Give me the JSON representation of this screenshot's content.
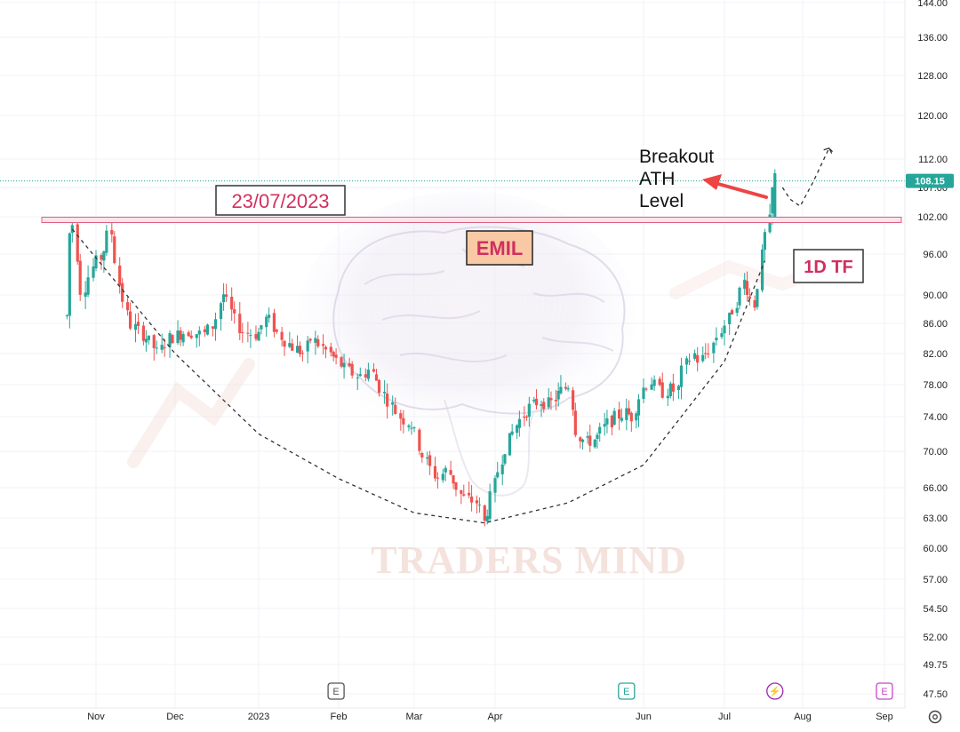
{
  "chart_data": {
    "type": "candlestick",
    "timeframe_label": "1D TF",
    "symbol_label": "EMIL",
    "date_label": "23/07/2023",
    "annotation": {
      "line1": "Breakout",
      "line2": "ATH",
      "line3": "Level"
    },
    "watermark": "TRADERS MIND",
    "last_price": "108.15",
    "last_price_value": 108.15,
    "resistance_level": 101.5,
    "y_ticks": [
      "144.00",
      "136.00",
      "128.00",
      "120.00",
      "112.00",
      "107.00",
      "102.00",
      "96.00",
      "90.00",
      "86.00",
      "82.00",
      "78.00",
      "74.00",
      "70.00",
      "66.00",
      "63.00",
      "60.00",
      "57.00",
      "54.50",
      "52.00",
      "49.75",
      "47.50"
    ],
    "y_tick_values": [
      144,
      136,
      128,
      120,
      112,
      107,
      102,
      96,
      90,
      86,
      82,
      78,
      74,
      70,
      66,
      63,
      60,
      57,
      54.5,
      52,
      49.75,
      47.5
    ],
    "x_ticks": [
      "Nov",
      "Dec",
      "2023",
      "Feb",
      "Mar",
      "Apr",
      "Jun",
      "Jul",
      "Aug",
      "Sep"
    ],
    "x_tick_dates": [
      "2022-11-01",
      "2022-12-01",
      "2023-01-01",
      "2023-02-01",
      "2023-03-01",
      "2023-04-01",
      "2023-06-01",
      "2023-07-01",
      "2023-08-01",
      "2023-09-01"
    ],
    "y_scale": "log",
    "grid": true,
    "event_markers": [
      {
        "label": "E",
        "date": "2023-01-31"
      },
      {
        "label": "E",
        "date": "2023-05-25"
      },
      {
        "label": "⚡",
        "date": "2023-07-21"
      },
      {
        "label": "E",
        "date": "2023-09-01"
      }
    ],
    "cup_path": [
      [
        "2022-10-23",
        100
      ],
      [
        "2022-12-01",
        82
      ],
      [
        "2023-01-01",
        72
      ],
      [
        "2023-02-01",
        67
      ],
      [
        "2023-03-01",
        63.5
      ],
      [
        "2023-03-28",
        62.5
      ],
      [
        "2023-05-01",
        64.5
      ],
      [
        "2023-06-01",
        68.5
      ],
      [
        "2023-07-01",
        81
      ],
      [
        "2023-07-17",
        95
      ]
    ],
    "projection_path": [
      [
        "2023-07-24",
        107
      ],
      [
        "2023-07-27",
        105
      ],
      [
        "2023-07-31",
        103.8
      ],
      [
        "2023-08-05",
        108
      ],
      [
        "2023-08-11",
        114
      ],
      [
        "2023-08-13",
        113
      ]
    ],
    "price_path": [
      [
        "2022-10-21",
        87
      ],
      [
        "2022-10-23",
        104
      ],
      [
        "2022-10-27",
        90
      ],
      [
        "2022-10-31",
        94
      ],
      [
        "2022-11-04",
        96
      ],
      [
        "2022-11-07",
        100.5
      ],
      [
        "2022-11-10",
        92
      ],
      [
        "2022-11-14",
        86
      ],
      [
        "2022-11-21",
        84
      ],
      [
        "2022-11-25",
        82
      ],
      [
        "2022-11-29",
        84
      ],
      [
        "2022-12-06",
        85
      ],
      [
        "2022-12-12",
        84.5
      ],
      [
        "2022-12-16",
        86
      ],
      [
        "2022-12-19",
        90.5
      ],
      [
        "2022-12-23",
        87
      ],
      [
        "2022-12-26",
        85
      ],
      [
        "2023-01-01",
        84.5
      ],
      [
        "2023-01-05",
        87
      ],
      [
        "2023-01-08",
        85
      ],
      [
        "2023-01-14",
        83
      ],
      [
        "2023-01-19",
        82
      ],
      [
        "2023-01-22",
        84
      ],
      [
        "2023-01-29",
        82
      ],
      [
        "2023-02-04",
        80
      ],
      [
        "2023-02-09",
        79
      ],
      [
        "2023-02-13",
        80
      ],
      [
        "2023-02-18",
        77
      ],
      [
        "2023-02-24",
        74
      ],
      [
        "2023-03-01",
        73
      ],
      [
        "2023-03-04",
        70
      ],
      [
        "2023-03-08",
        68
      ],
      [
        "2023-03-10",
        67
      ],
      [
        "2023-03-14",
        68
      ],
      [
        "2023-03-20",
        65
      ],
      [
        "2023-03-26",
        64.5
      ],
      [
        "2023-03-28",
        62.5
      ],
      [
        "2023-03-31",
        65
      ],
      [
        "2023-04-05",
        70
      ],
      [
        "2023-04-10",
        73
      ],
      [
        "2023-04-15",
        75
      ],
      [
        "2023-04-20",
        76
      ],
      [
        "2023-04-24",
        75.5
      ],
      [
        "2023-04-28",
        77
      ],
      [
        "2023-05-02",
        78
      ],
      [
        "2023-05-05",
        72
      ],
      [
        "2023-05-09",
        71
      ],
      [
        "2023-05-13",
        71.5
      ],
      [
        "2023-05-17",
        73
      ],
      [
        "2023-05-21",
        74
      ],
      [
        "2023-05-25",
        74.5
      ],
      [
        "2023-05-28",
        74
      ],
      [
        "2023-06-01",
        77.5
      ],
      [
        "2023-06-04",
        78.5
      ],
      [
        "2023-06-08",
        77
      ],
      [
        "2023-06-12",
        77.5
      ],
      [
        "2023-06-14",
        77
      ],
      [
        "2023-06-16",
        80
      ],
      [
        "2023-06-20",
        82
      ],
      [
        "2023-06-22",
        81
      ],
      [
        "2023-06-26",
        82.5
      ],
      [
        "2023-06-30",
        85
      ],
      [
        "2023-07-03",
        86.5
      ],
      [
        "2023-07-06",
        89
      ],
      [
        "2023-07-09",
        92
      ],
      [
        "2023-07-11",
        90.5
      ],
      [
        "2023-07-13",
        88
      ],
      [
        "2023-07-15",
        92
      ],
      [
        "2023-07-17",
        98
      ],
      [
        "2023-07-19",
        101
      ],
      [
        "2023-07-20",
        103
      ],
      [
        "2023-07-21",
        109
      ]
    ]
  }
}
